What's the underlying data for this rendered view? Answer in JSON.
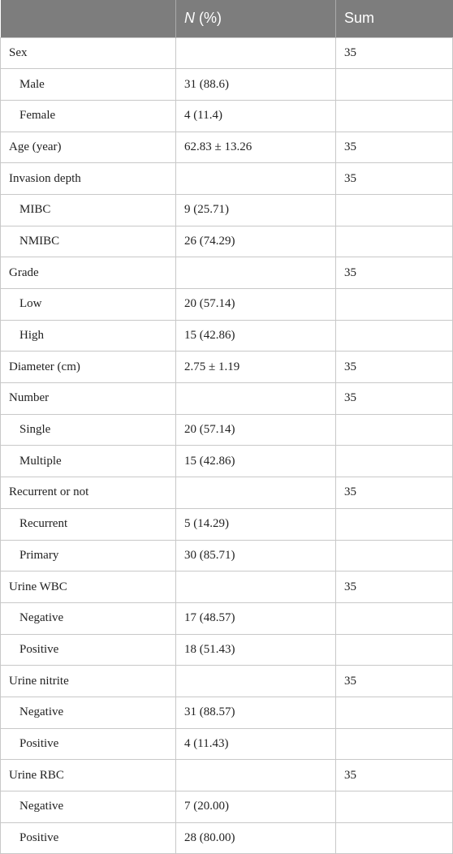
{
  "header": {
    "col1": "",
    "col2_italic": "N",
    "col2_rest": " (%)",
    "col3": "Sum"
  },
  "rows": [
    {
      "label": "Sex",
      "sub": false,
      "value": "",
      "sum": "35"
    },
    {
      "label": "Male",
      "sub": true,
      "value": "31 (88.6)",
      "sum": ""
    },
    {
      "label": "Female",
      "sub": true,
      "value": "4 (11.4)",
      "sum": ""
    },
    {
      "label": "Age (year)",
      "sub": false,
      "value": "62.83 ± 13.26",
      "sum": "35"
    },
    {
      "label": "Invasion depth",
      "sub": false,
      "value": "",
      "sum": "35"
    },
    {
      "label": "MIBC",
      "sub": true,
      "value": "9 (25.71)",
      "sum": ""
    },
    {
      "label": "NMIBC",
      "sub": true,
      "value": "26 (74.29)",
      "sum": ""
    },
    {
      "label": "Grade",
      "sub": false,
      "value": "",
      "sum": "35"
    },
    {
      "label": "Low",
      "sub": true,
      "value": "20 (57.14)",
      "sum": ""
    },
    {
      "label": "High",
      "sub": true,
      "value": "15 (42.86)",
      "sum": ""
    },
    {
      "label": "Diameter (cm)",
      "sub": false,
      "value": "2.75 ± 1.19",
      "sum": "35"
    },
    {
      "label": "Number",
      "sub": false,
      "value": "",
      "sum": "35"
    },
    {
      "label": "Single",
      "sub": true,
      "value": "20 (57.14)",
      "sum": ""
    },
    {
      "label": "Multiple",
      "sub": true,
      "value": "15 (42.86)",
      "sum": ""
    },
    {
      "label": "Recurrent or not",
      "sub": false,
      "value": "",
      "sum": "35"
    },
    {
      "label": "Recurrent",
      "sub": true,
      "value": "5 (14.29)",
      "sum": ""
    },
    {
      "label": "Primary",
      "sub": true,
      "value": "30 (85.71)",
      "sum": ""
    },
    {
      "label": "Urine WBC",
      "sub": false,
      "value": "",
      "sum": "35"
    },
    {
      "label": "Negative",
      "sub": true,
      "value": "17 (48.57)",
      "sum": ""
    },
    {
      "label": "Positive",
      "sub": true,
      "value": "18 (51.43)",
      "sum": ""
    },
    {
      "label": "Urine nitrite",
      "sub": false,
      "value": "",
      "sum": "35"
    },
    {
      "label": "Negative",
      "sub": true,
      "value": "31 (88.57)",
      "sum": ""
    },
    {
      "label": "Positive",
      "sub": true,
      "value": "4 (11.43)",
      "sum": ""
    },
    {
      "label": "Urine RBC",
      "sub": false,
      "value": "",
      "sum": "35"
    },
    {
      "label": "Negative",
      "sub": true,
      "value": "7 (20.00)",
      "sum": ""
    },
    {
      "label": "Positive",
      "sub": true,
      "value": "28 (80.00)",
      "sum": ""
    }
  ]
}
